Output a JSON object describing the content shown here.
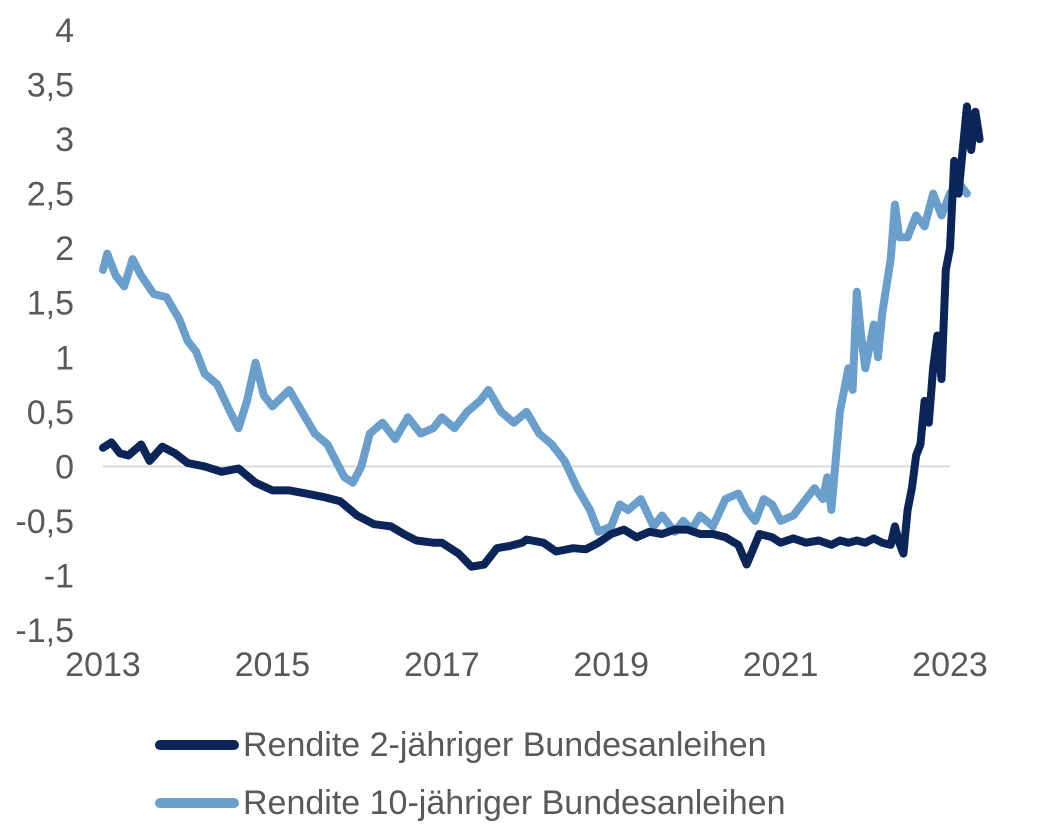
{
  "chart_data": {
    "type": "line",
    "ylim": [
      -1.5,
      4
    ],
    "xlim": [
      2013,
      2023
    ],
    "y_ticks": [
      "4",
      "3,5",
      "3",
      "2,5",
      "2",
      "1,5",
      "1",
      "0,5",
      "0",
      "-0,5",
      "-1",
      "-1,5"
    ],
    "y_tick_values": [
      4,
      3.5,
      3,
      2.5,
      2,
      1.5,
      1,
      0.5,
      0,
      -0.5,
      -1,
      -1.5
    ],
    "x_ticks": [
      "2013",
      "2015",
      "2017",
      "2019",
      "2021",
      "2023"
    ],
    "x_tick_values": [
      2013,
      2015,
      2017,
      2019,
      2021,
      2023
    ],
    "zero_line": true,
    "grid": false,
    "legend_position": "bottom",
    "series": [
      {
        "name": "Rendite 2-jähriger Bundesanleihen",
        "color": "#0b2559",
        "points": [
          [
            2013.0,
            0.17
          ],
          [
            2013.1,
            0.22
          ],
          [
            2013.2,
            0.12
          ],
          [
            2013.3,
            0.1
          ],
          [
            2013.45,
            0.2
          ],
          [
            2013.55,
            0.05
          ],
          [
            2013.7,
            0.18
          ],
          [
            2013.85,
            0.12
          ],
          [
            2014.0,
            0.03
          ],
          [
            2014.2,
            0.0
          ],
          [
            2014.4,
            -0.05
          ],
          [
            2014.6,
            -0.02
          ],
          [
            2014.8,
            -0.15
          ],
          [
            2015.0,
            -0.22
          ],
          [
            2015.2,
            -0.22
          ],
          [
            2015.4,
            -0.25
          ],
          [
            2015.6,
            -0.28
          ],
          [
            2015.8,
            -0.32
          ],
          [
            2016.0,
            -0.45
          ],
          [
            2016.2,
            -0.53
          ],
          [
            2016.4,
            -0.55
          ],
          [
            2016.55,
            -0.62
          ],
          [
            2016.7,
            -0.68
          ],
          [
            2016.9,
            -0.7
          ],
          [
            2017.0,
            -0.7
          ],
          [
            2017.2,
            -0.8
          ],
          [
            2017.35,
            -0.92
          ],
          [
            2017.5,
            -0.9
          ],
          [
            2017.65,
            -0.75
          ],
          [
            2017.8,
            -0.73
          ],
          [
            2017.95,
            -0.7
          ],
          [
            2018.0,
            -0.67
          ],
          [
            2018.2,
            -0.7
          ],
          [
            2018.35,
            -0.78
          ],
          [
            2018.55,
            -0.75
          ],
          [
            2018.7,
            -0.76
          ],
          [
            2018.85,
            -0.7
          ],
          [
            2019.0,
            -0.62
          ],
          [
            2019.15,
            -0.58
          ],
          [
            2019.3,
            -0.65
          ],
          [
            2019.45,
            -0.6
          ],
          [
            2019.6,
            -0.62
          ],
          [
            2019.75,
            -0.58
          ],
          [
            2019.9,
            -0.58
          ],
          [
            2020.05,
            -0.62
          ],
          [
            2020.2,
            -0.62
          ],
          [
            2020.35,
            -0.65
          ],
          [
            2020.5,
            -0.72
          ],
          [
            2020.6,
            -0.9
          ],
          [
            2020.75,
            -0.62
          ],
          [
            2020.9,
            -0.65
          ],
          [
            2021.0,
            -0.7
          ],
          [
            2021.15,
            -0.66
          ],
          [
            2021.3,
            -0.7
          ],
          [
            2021.45,
            -0.68
          ],
          [
            2021.6,
            -0.72
          ],
          [
            2021.7,
            -0.68
          ],
          [
            2021.8,
            -0.7
          ],
          [
            2021.9,
            -0.68
          ],
          [
            2022.0,
            -0.7
          ],
          [
            2022.1,
            -0.66
          ],
          [
            2022.2,
            -0.7
          ],
          [
            2022.3,
            -0.72
          ],
          [
            2022.35,
            -0.55
          ],
          [
            2022.4,
            -0.7
          ],
          [
            2022.45,
            -0.8
          ],
          [
            2022.5,
            -0.4
          ],
          [
            2022.55,
            -0.2
          ],
          [
            2022.6,
            0.1
          ],
          [
            2022.65,
            0.2
          ],
          [
            2022.7,
            0.6
          ],
          [
            2022.75,
            0.4
          ],
          [
            2022.8,
            0.9
          ],
          [
            2022.85,
            1.2
          ],
          [
            2022.9,
            0.8
          ],
          [
            2022.95,
            1.8
          ],
          [
            2023.0,
            2.0
          ],
          [
            2023.05,
            2.8
          ],
          [
            2023.1,
            2.5
          ],
          [
            2023.15,
            2.9
          ],
          [
            2023.2,
            3.3
          ],
          [
            2023.25,
            2.9
          ],
          [
            2023.3,
            3.25
          ],
          [
            2023.35,
            3.0
          ]
        ]
      },
      {
        "name": "Rendite 10-jähriger Bundesanleihen",
        "color": "#6a9fcb",
        "points": [
          [
            2013.0,
            1.8
          ],
          [
            2013.05,
            1.95
          ],
          [
            2013.15,
            1.75
          ],
          [
            2013.25,
            1.65
          ],
          [
            2013.35,
            1.9
          ],
          [
            2013.45,
            1.75
          ],
          [
            2013.6,
            1.58
          ],
          [
            2013.75,
            1.55
          ],
          [
            2013.9,
            1.35
          ],
          [
            2014.0,
            1.15
          ],
          [
            2014.1,
            1.05
          ],
          [
            2014.2,
            0.85
          ],
          [
            2014.35,
            0.75
          ],
          [
            2014.5,
            0.5
          ],
          [
            2014.6,
            0.35
          ],
          [
            2014.7,
            0.6
          ],
          [
            2014.8,
            0.95
          ],
          [
            2014.9,
            0.65
          ],
          [
            2015.0,
            0.55
          ],
          [
            2015.2,
            0.7
          ],
          [
            2015.35,
            0.5
          ],
          [
            2015.5,
            0.3
          ],
          [
            2015.65,
            0.2
          ],
          [
            2015.75,
            0.05
          ],
          [
            2015.85,
            -0.1
          ],
          [
            2015.95,
            -0.15
          ],
          [
            2016.05,
            0.0
          ],
          [
            2016.15,
            0.3
          ],
          [
            2016.3,
            0.4
          ],
          [
            2016.45,
            0.25
          ],
          [
            2016.6,
            0.45
          ],
          [
            2016.75,
            0.3
          ],
          [
            2016.9,
            0.35
          ],
          [
            2017.0,
            0.45
          ],
          [
            2017.15,
            0.35
          ],
          [
            2017.3,
            0.5
          ],
          [
            2017.45,
            0.6
          ],
          [
            2017.55,
            0.7
          ],
          [
            2017.7,
            0.5
          ],
          [
            2017.85,
            0.4
          ],
          [
            2018.0,
            0.5
          ],
          [
            2018.15,
            0.3
          ],
          [
            2018.3,
            0.2
          ],
          [
            2018.45,
            0.05
          ],
          [
            2018.6,
            -0.2
          ],
          [
            2018.75,
            -0.4
          ],
          [
            2018.85,
            -0.6
          ],
          [
            2019.0,
            -0.55
          ],
          [
            2019.1,
            -0.35
          ],
          [
            2019.2,
            -0.4
          ],
          [
            2019.35,
            -0.3
          ],
          [
            2019.5,
            -0.55
          ],
          [
            2019.6,
            -0.45
          ],
          [
            2019.75,
            -0.6
          ],
          [
            2019.85,
            -0.5
          ],
          [
            2019.95,
            -0.58
          ],
          [
            2020.05,
            -0.45
          ],
          [
            2020.2,
            -0.55
          ],
          [
            2020.35,
            -0.3
          ],
          [
            2020.5,
            -0.25
          ],
          [
            2020.6,
            -0.4
          ],
          [
            2020.7,
            -0.5
          ],
          [
            2020.8,
            -0.3
          ],
          [
            2020.9,
            -0.35
          ],
          [
            2021.0,
            -0.5
          ],
          [
            2021.15,
            -0.45
          ],
          [
            2021.3,
            -0.3
          ],
          [
            2021.4,
            -0.2
          ],
          [
            2021.5,
            -0.3
          ],
          [
            2021.55,
            -0.1
          ],
          [
            2021.6,
            -0.4
          ],
          [
            2021.7,
            0.5
          ],
          [
            2021.8,
            0.9
          ],
          [
            2021.85,
            0.7
          ],
          [
            2021.9,
            1.6
          ],
          [
            2021.95,
            1.2
          ],
          [
            2022.0,
            0.9
          ],
          [
            2022.1,
            1.3
          ],
          [
            2022.15,
            1.0
          ],
          [
            2022.2,
            1.4
          ],
          [
            2022.3,
            1.9
          ],
          [
            2022.35,
            2.4
          ],
          [
            2022.4,
            2.1
          ],
          [
            2022.5,
            2.1
          ],
          [
            2022.6,
            2.3
          ],
          [
            2022.7,
            2.2
          ],
          [
            2022.8,
            2.5
          ],
          [
            2022.9,
            2.3
          ],
          [
            2023.0,
            2.5
          ],
          [
            2023.1,
            2.6
          ],
          [
            2023.2,
            2.5
          ]
        ]
      }
    ]
  }
}
